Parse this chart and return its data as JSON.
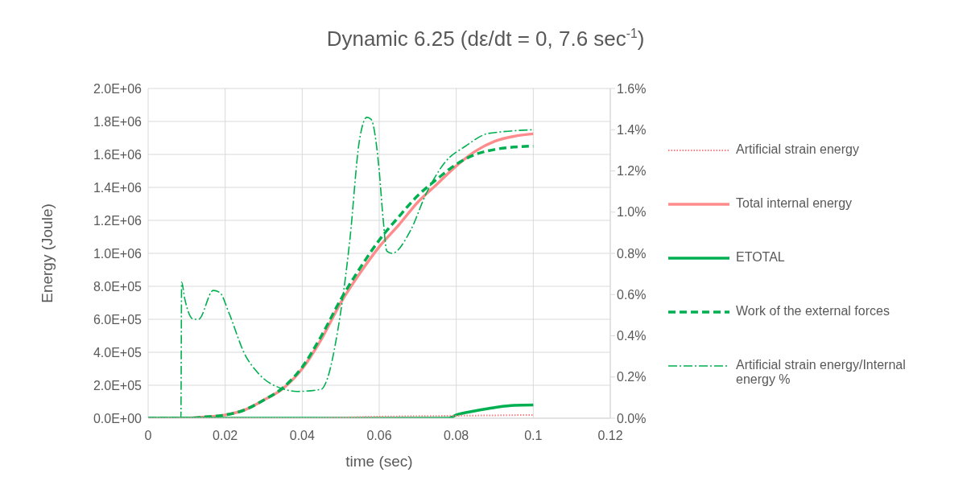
{
  "chart_data": {
    "type": "line",
    "title": "Dynamic 6.25 (dε/dt = 0, 7.6 sec$^{-1}$)",
    "xlabel": "time (sec)",
    "ylabel": "Energy (Joule)",
    "xlim": [
      0,
      0.12
    ],
    "xticks": [
      0,
      0.02,
      0.04,
      0.06,
      0.08,
      0.1,
      0.12
    ],
    "ylim": [
      0,
      2000000
    ],
    "yticks": [
      {
        "value": 0,
        "label": "0.0E+00"
      },
      {
        "value": 200000,
        "label": "2.0E+05"
      },
      {
        "value": 400000,
        "label": "4.0E+05"
      },
      {
        "value": 600000,
        "label": "6.0E+05"
      },
      {
        "value": 800000,
        "label": "8.0E+05"
      },
      {
        "value": 1000000,
        "label": "1.0E+06"
      },
      {
        "value": 1200000,
        "label": "1.2E+06"
      },
      {
        "value": 1400000,
        "label": "1.4E+06"
      },
      {
        "value": 1600000,
        "label": "1.6E+06"
      },
      {
        "value": 1800000,
        "label": "1.8E+06"
      },
      {
        "value": 2000000,
        "label": "2.0E+06"
      }
    ],
    "y2lim": [
      0,
      1.6
    ],
    "y2ticks": [
      {
        "value": 0,
        "label": "0.0%"
      },
      {
        "value": 0.2,
        "label": "0.2%"
      },
      {
        "value": 0.4,
        "label": "0.4%"
      },
      {
        "value": 0.6,
        "label": "0.6%"
      },
      {
        "value": 0.8,
        "label": "0.8%"
      },
      {
        "value": 1.0,
        "label": "1.0%"
      },
      {
        "value": 1.2,
        "label": "1.2%"
      },
      {
        "value": 1.4,
        "label": "1.4%"
      },
      {
        "value": 1.6,
        "label": "1.6%"
      }
    ],
    "grid": true,
    "legend": "right",
    "marker": "none",
    "series": [
      {
        "name": "Artificial strain energy",
        "color": "#ff7c80",
        "line_style": "dotted",
        "x": [
          0,
          0.04,
          0.06,
          0.08,
          0.1
        ],
        "values": [
          0,
          0,
          10000,
          15000,
          20000
        ]
      },
      {
        "name": "Total internal energy",
        "color": "#ff8c8c",
        "line_style": "solid",
        "x": [
          0,
          0.01,
          0.015,
          0.02,
          0.025,
          0.03,
          0.035,
          0.04,
          0.045,
          0.05,
          0.055,
          0.06,
          0.065,
          0.07,
          0.075,
          0.08,
          0.085,
          0.09,
          0.095,
          0.1
        ],
        "values": [
          0,
          0,
          8000,
          20000,
          50000,
          110000,
          180000,
          300000,
          480000,
          700000,
          880000,
          1040000,
          1170000,
          1310000,
          1420000,
          1530000,
          1620000,
          1680000,
          1710000,
          1725000
        ]
      },
      {
        "name": "ETOTAL",
        "color": "#00b050",
        "line_style": "solid",
        "x": [
          0,
          0.078,
          0.08,
          0.085,
          0.09,
          0.095,
          0.1
        ],
        "values": [
          0,
          0,
          20000,
          45000,
          65000,
          78000,
          80000
        ]
      },
      {
        "name": "Work of the external forces",
        "color": "#00b050",
        "line_style": "dashed",
        "x": [
          0,
          0.01,
          0.015,
          0.02,
          0.025,
          0.03,
          0.035,
          0.04,
          0.045,
          0.05,
          0.055,
          0.06,
          0.065,
          0.07,
          0.075,
          0.08,
          0.085,
          0.09,
          0.095,
          0.1
        ],
        "values": [
          0,
          0,
          8000,
          20000,
          50000,
          110000,
          185000,
          310000,
          500000,
          720000,
          910000,
          1080000,
          1220000,
          1350000,
          1450000,
          1540000,
          1600000,
          1630000,
          1645000,
          1650000
        ]
      },
      {
        "name": "Artificial strain energy/Internal energy %",
        "color": "#00b050",
        "line_style": "dashdot",
        "axis": "y2",
        "x": [
          0,
          0.0085,
          0.0087,
          0.0095,
          0.0118,
          0.0131,
          0.0169,
          0.0186,
          0.021,
          0.0251,
          0.0285,
          0.0354,
          0.0387,
          0.0449,
          0.0463,
          0.049,
          0.0524,
          0.0548,
          0.0568,
          0.0579,
          0.0599,
          0.061,
          0.062,
          0.0633,
          0.0681,
          0.0722,
          0.077,
          0.0824,
          0.0879,
          0.092,
          0.1
        ],
        "values": [
          0,
          0,
          0.66,
          0.58,
          0.48,
          0.48,
          0.62,
          0.61,
          0.51,
          0.31,
          0.22,
          0.14,
          0.13,
          0.14,
          0.18,
          0.4,
          0.87,
          1.34,
          1.46,
          1.45,
          1.22,
          0.97,
          0.81,
          0.8,
          0.91,
          1.09,
          1.24,
          1.32,
          1.38,
          1.39,
          1.4
        ]
      }
    ]
  }
}
